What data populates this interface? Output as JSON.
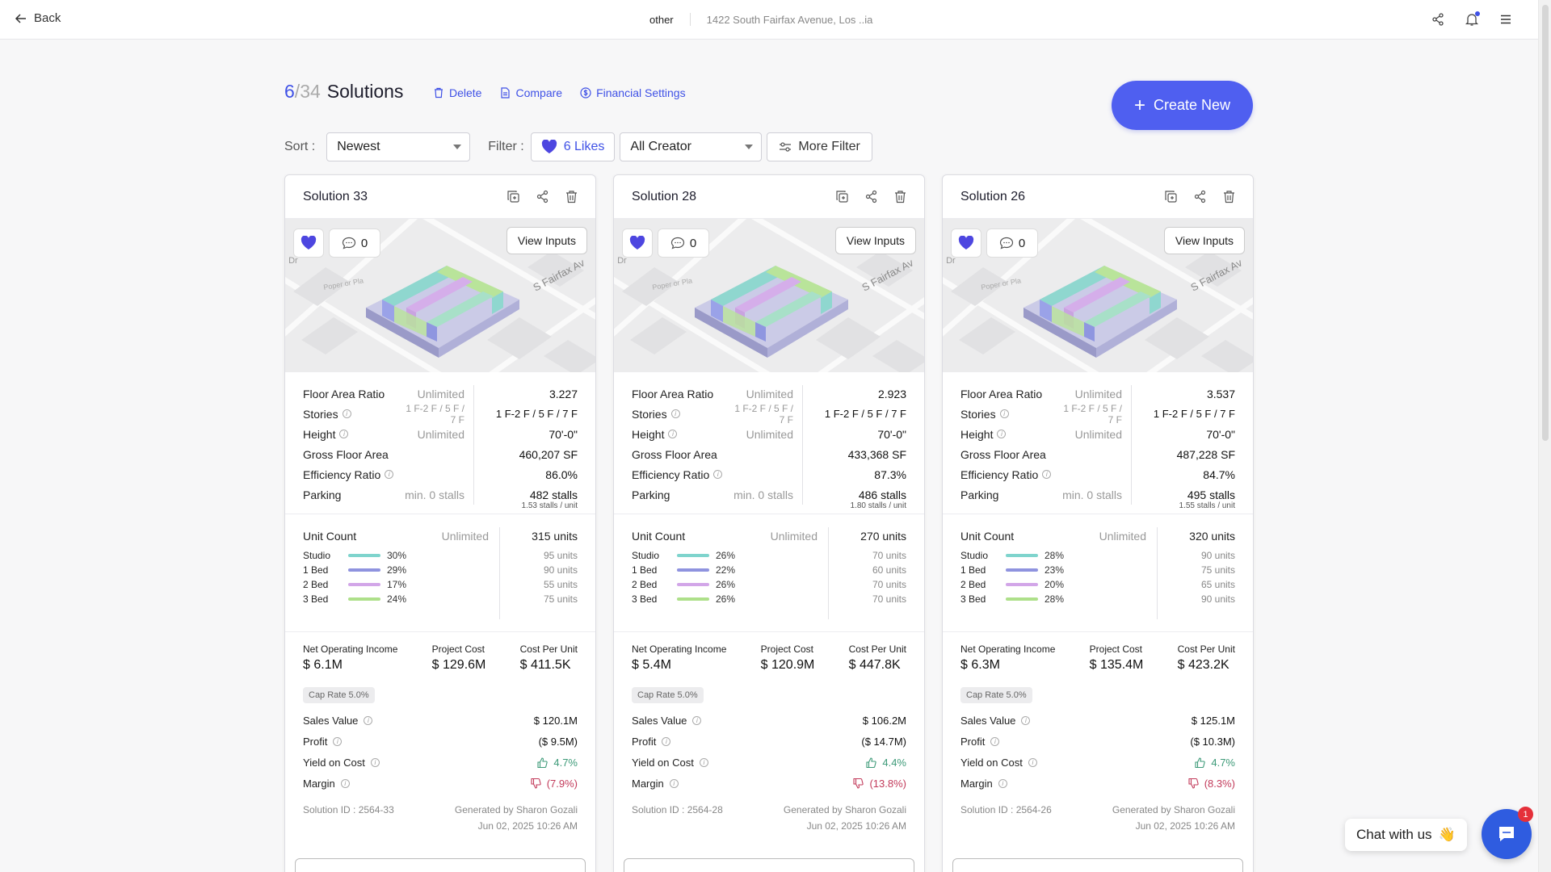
{
  "topbar": {
    "back_label": "Back",
    "category": "other",
    "address": "1422 South Fairfax Avenue, Los ..ia"
  },
  "heading": {
    "selected": "6",
    "slash": "/",
    "total": "34",
    "title": "Solutions",
    "delete_label": "Delete",
    "compare_label": "Compare",
    "financial_label": "Financial Settings",
    "create_label": "Create New"
  },
  "controls": {
    "sort_label": "Sort :",
    "sort_value": "Newest",
    "filter_label": "Filter :",
    "likes_label": "6 Likes",
    "creator_value": "All Creator",
    "more_filter_label": "More Filter"
  },
  "labels": {
    "far": "Floor Area Ratio",
    "stories": "Stories",
    "height": "Height",
    "gfa": "Gross Floor Area",
    "eff": "Efficiency Ratio",
    "parking": "Parking",
    "unlimited": "Unlimited",
    "stories_limit": "1 F-2 F / 5 F / 7 F",
    "parking_limit": "min. 0 stalls",
    "unit_count": "Unit Count",
    "noi": "Net Operating Income",
    "project_cost": "Project Cost",
    "cost_per_unit": "Cost Per Unit",
    "sales_value": "Sales Value",
    "profit": "Profit",
    "yield": "Yield on Cost",
    "margin": "Margin",
    "view_inputs": "View Inputs",
    "studio": "Studio",
    "bed1": "1 Bed",
    "bed2": "2 Bed",
    "bed3": "3 Bed",
    "map_street": "S Fairfax Av",
    "map_poper": "Poper or Pla",
    "map_dr": "ı Dr"
  },
  "colors": {
    "accent": "#4f5ff0",
    "studio": "#7fd4cd",
    "bed1": "#8f93df",
    "bed2": "#d2a6e8",
    "bed3": "#aee08a",
    "good": "#3d9a78",
    "bad": "#c23a5a"
  },
  "cards": [
    {
      "title": "Solution 33",
      "comments": "0",
      "far": "3.227",
      "stories": "1 F-2 F / 5 F / 7 F",
      "height": "70'-0\"",
      "gfa": "460,207 SF",
      "eff": "86.0%",
      "parking": "482 stalls",
      "parking_sub": "1.53 stalls / unit",
      "unit_total": "315 units",
      "mix": [
        {
          "pct": "30%",
          "units": "95 units",
          "frac": 0.3
        },
        {
          "pct": "29%",
          "units": "90 units",
          "frac": 0.29
        },
        {
          "pct": "17%",
          "units": "55 units",
          "frac": 0.17
        },
        {
          "pct": "24%",
          "units": "75 units",
          "frac": 0.24
        }
      ],
      "noi": "$ 6.1M",
      "project_cost": "$ 129.6M",
      "cost_per_unit": "$ 411.5K",
      "cap_rate": "Cap Rate 5.0%",
      "sales_value": "$ 120.1M",
      "profit": "($ 9.5M)",
      "yield": "4.7%",
      "margin": "(7.9%)",
      "solution_id": "Solution ID : 2564-33",
      "generated_by": "Generated by Sharon Gozali",
      "date": "Jun 02, 2025 10:26 AM"
    },
    {
      "title": "Solution 28",
      "comments": "0",
      "far": "2.923",
      "stories": "1 F-2 F / 5 F / 7 F",
      "height": "70'-0\"",
      "gfa": "433,368 SF",
      "eff": "87.3%",
      "parking": "486 stalls",
      "parking_sub": "1.80 stalls / unit",
      "unit_total": "270 units",
      "mix": [
        {
          "pct": "26%",
          "units": "70 units",
          "frac": 0.26
        },
        {
          "pct": "22%",
          "units": "60 units",
          "frac": 0.22
        },
        {
          "pct": "26%",
          "units": "70 units",
          "frac": 0.26
        },
        {
          "pct": "26%",
          "units": "70 units",
          "frac": 0.26
        }
      ],
      "noi": "$ 5.4M",
      "project_cost": "$ 120.9M",
      "cost_per_unit": "$ 447.8K",
      "cap_rate": "Cap Rate 5.0%",
      "sales_value": "$ 106.2M",
      "profit": "($ 14.7M)",
      "yield": "4.4%",
      "margin": "(13.8%)",
      "solution_id": "Solution ID : 2564-28",
      "generated_by": "Generated by Sharon Gozali",
      "date": "Jun 02, 2025 10:26 AM"
    },
    {
      "title": "Solution 26",
      "comments": "0",
      "far": "3.537",
      "stories": "1 F-2 F / 5 F / 7 F",
      "height": "70'-0\"",
      "gfa": "487,228 SF",
      "eff": "84.7%",
      "parking": "495 stalls",
      "parking_sub": "1.55 stalls / unit",
      "unit_total": "320 units",
      "mix": [
        {
          "pct": "28%",
          "units": "90 units",
          "frac": 0.28
        },
        {
          "pct": "23%",
          "units": "75 units",
          "frac": 0.23
        },
        {
          "pct": "20%",
          "units": "65 units",
          "frac": 0.2
        },
        {
          "pct": "28%",
          "units": "90 units",
          "frac": 0.28
        }
      ],
      "noi": "$ 6.3M",
      "project_cost": "$ 135.4M",
      "cost_per_unit": "$ 423.2K",
      "cap_rate": "Cap Rate 5.0%",
      "sales_value": "$ 125.1M",
      "profit": "($ 10.3M)",
      "yield": "4.7%",
      "margin": "(8.3%)",
      "solution_id": "Solution ID : 2564-26",
      "generated_by": "Generated by Sharon Gozali",
      "date": "Jun 02, 2025 10:26 AM"
    }
  ],
  "chat": {
    "label": "Chat with us",
    "emoji": "👋",
    "badge": "1"
  }
}
